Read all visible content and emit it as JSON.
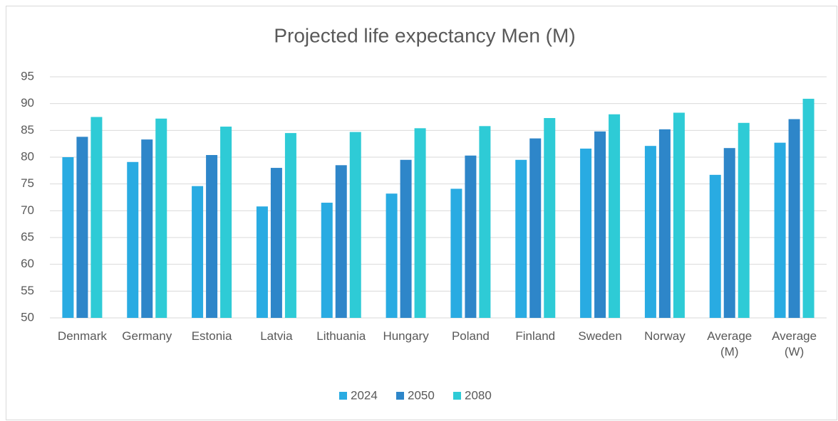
{
  "chart_data": {
    "type": "bar",
    "title": "Projected life expectancy Men (M)",
    "categories": [
      "Denmark",
      "Germany",
      "Estonia",
      "Latvia",
      "Lithuania",
      "Hungary",
      "Poland",
      "Finland",
      "Sweden",
      "Norway",
      "Average (M)",
      "Average (W)"
    ],
    "series": [
      {
        "name": "2024",
        "color": "#29abe2",
        "values": [
          80,
          79.1,
          74.6,
          70.8,
          71.5,
          73.2,
          74.1,
          79.5,
          81.6,
          82.1,
          76.7,
          82.7
        ]
      },
      {
        "name": "2050",
        "color": "#2e86c9",
        "values": [
          83.8,
          83.3,
          80.4,
          78,
          78.5,
          79.5,
          80.3,
          83.5,
          84.8,
          85.2,
          81.7,
          87.1
        ]
      },
      {
        "name": "2080",
        "color": "#2ecbd6",
        "values": [
          87.5,
          87.2,
          85.7,
          84.5,
          84.7,
          85.4,
          85.8,
          87.3,
          88,
          88.3,
          86.4,
          90.9
        ]
      }
    ],
    "ylim": [
      50,
      95
    ],
    "yticks": [
      50,
      55,
      60,
      65,
      70,
      75,
      80,
      85,
      90,
      95
    ],
    "grid": true,
    "legend": "bottom"
  }
}
